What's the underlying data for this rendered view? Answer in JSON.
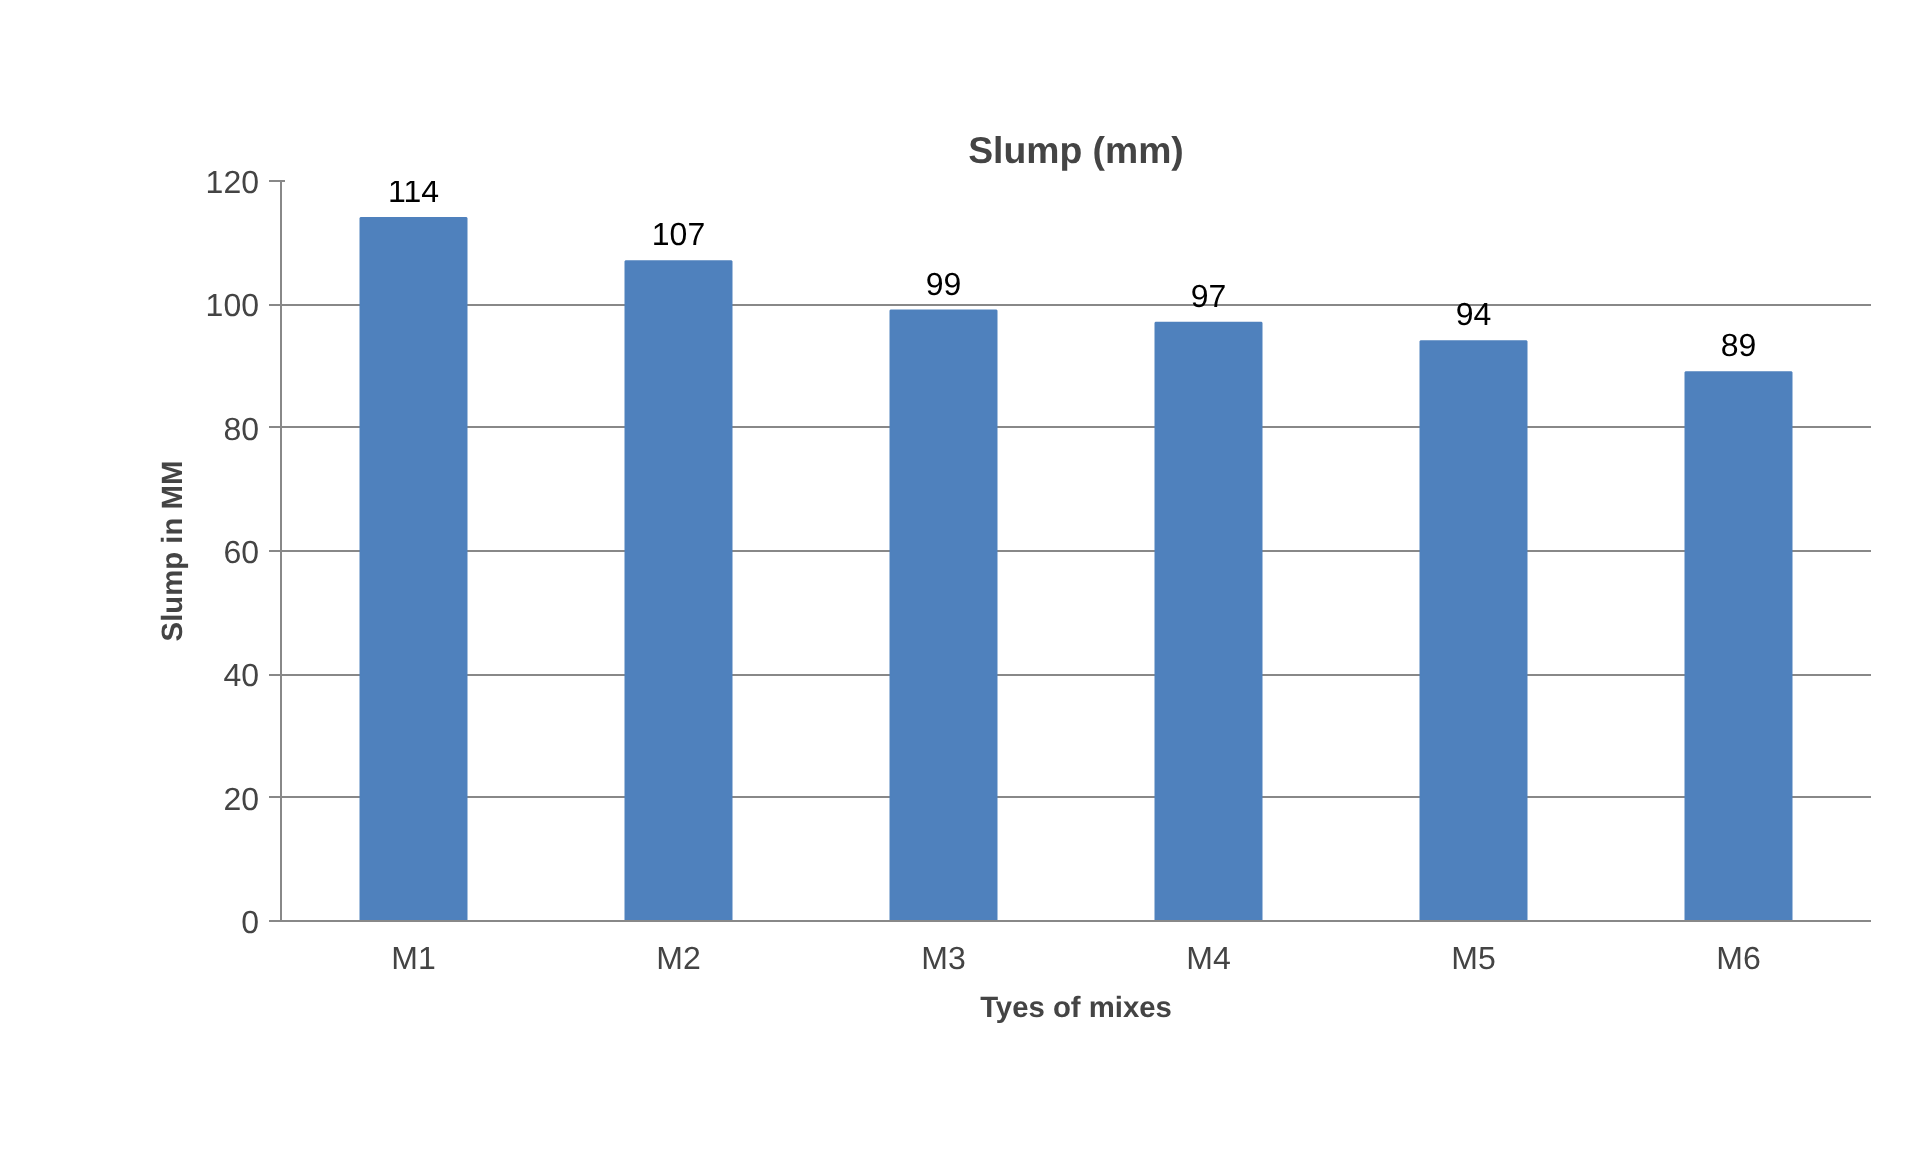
{
  "chart_data": {
    "type": "bar",
    "title": "Slump (mm)",
    "xlabel": "Tyes of mixes",
    "ylabel": "Slump in MM",
    "categories": [
      "M1",
      "M2",
      "M3",
      "M4",
      "M5",
      "M6"
    ],
    "values": [
      114,
      107,
      99,
      97,
      94,
      89
    ],
    "color": "#4f81bd",
    "ylim": [
      0,
      120
    ],
    "yticks": [
      0,
      20,
      40,
      60,
      80,
      100,
      120
    ],
    "grid": "y",
    "data_labels": true
  }
}
